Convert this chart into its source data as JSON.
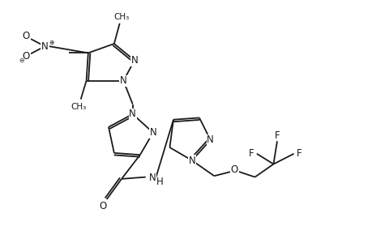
{
  "bg_color": "#ffffff",
  "figsize": [
    4.6,
    3.0
  ],
  "dpi": 100,
  "bond_color": "#1a1a1a",
  "bond_lw": 1.3,
  "font_color": "#1a1a1a",
  "font_size": 8.5,
  "xlim": [
    0,
    10
  ],
  "ylim": [
    0,
    6.5
  ]
}
